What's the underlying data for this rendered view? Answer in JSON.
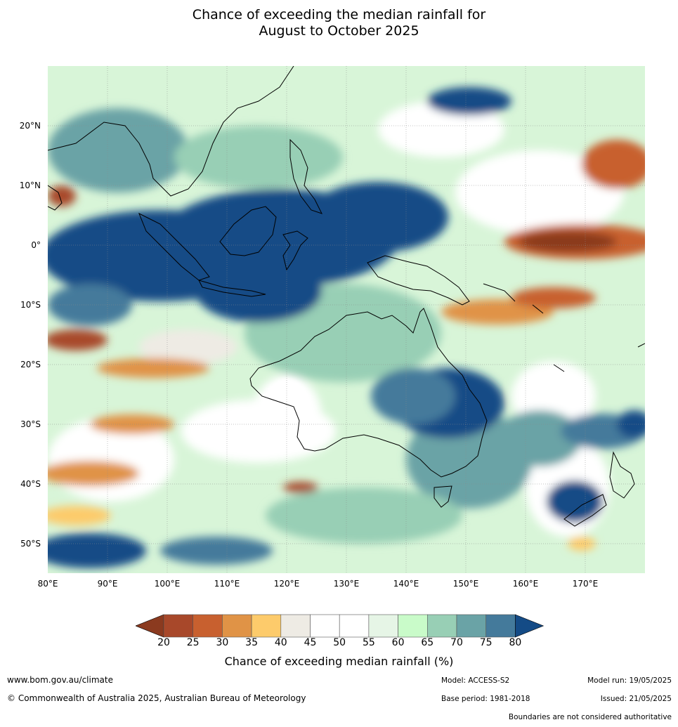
{
  "title_line1": "Chance of exceeding the median rainfall for",
  "title_line2": "August to October 2025",
  "map": {
    "lat_labels": [
      "20°N",
      "10°N",
      "0°",
      "10°S",
      "20°S",
      "30°S",
      "40°S",
      "50°S"
    ],
    "lon_labels": [
      "80°E",
      "90°E",
      "100°E",
      "110°E",
      "120°E",
      "130°E",
      "140°E",
      "150°E",
      "160°E",
      "170°E"
    ]
  },
  "colorbar": {
    "ticks": [
      "20",
      "25",
      "30",
      "35",
      "40",
      "45",
      "50",
      "55",
      "60",
      "65",
      "70",
      "75",
      "80"
    ],
    "colors": [
      "#8b3a1f",
      "#a8482a",
      "#c8602f",
      "#e09346",
      "#fdcb6b",
      "#eeebe4",
      "#ffffff",
      "#ffffff",
      "#e6f5e6",
      "#c9fbc9",
      "#98cfb5",
      "#6aa3a6",
      "#447a9b",
      "#144b86"
    ],
    "title": "Chance of exceeding median rainfall (%)"
  },
  "footer": {
    "website": "www.bom.gov.au/climate",
    "copyright": "© Commonwealth of Australia 2025, Australian Bureau of Meteorology",
    "model": "Model: ACCESS-S2",
    "base_period": "Base period: 1981-2018",
    "model_run": "Model run: 19/05/2025",
    "issued": "Issued: 21/05/2025",
    "disclaimer": "Boundaries are not considered authoritative"
  }
}
